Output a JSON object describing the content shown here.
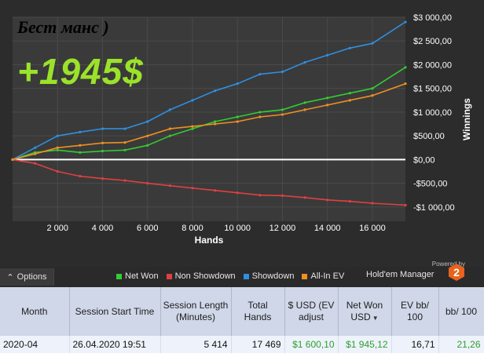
{
  "overlay": {
    "caption": "Бест манс )",
    "profit": "+1945$"
  },
  "options": {
    "label": "Options",
    "icon": "chevron-up-icon"
  },
  "legend": [
    {
      "label": "Net Won",
      "color": "#33cc33"
    },
    {
      "label": "Non Showdown",
      "color": "#e04040"
    },
    {
      "label": "Showdown",
      "color": "#2f8fe0"
    },
    {
      "label": "All-In EV",
      "color": "#f09020"
    }
  ],
  "branding": {
    "powered": "Powered by",
    "name": "Hold'em Manager",
    "version": "2"
  },
  "chart_data": {
    "type": "line",
    "xlabel": "Hands",
    "ylabel": "Winnings",
    "xlim": [
      0,
      17469
    ],
    "ylim": [
      -1300,
      3000
    ],
    "x_ticks": [
      2000,
      4000,
      6000,
      8000,
      10000,
      12000,
      14000,
      16000
    ],
    "x_tick_labels": [
      "2 000",
      "4 000",
      "6 000",
      "8 000",
      "10 000",
      "12 000",
      "14 000",
      "16 000"
    ],
    "y_ticks": [
      3000,
      2500,
      2000,
      1500,
      1000,
      500,
      0,
      -500,
      -1000
    ],
    "y_tick_labels": [
      "$3 000,00",
      "$2 500,00",
      "$2 000,00",
      "$1 500,00",
      "$1 000,00",
      "$500,00",
      "$0,00",
      "-$500,00",
      "-$1 000,00"
    ],
    "grid": true,
    "legend_placement": "bottom",
    "x": [
      0,
      1000,
      2000,
      3000,
      4000,
      5000,
      6000,
      7000,
      8000,
      9000,
      10000,
      11000,
      12000,
      13000,
      14000,
      15000,
      16000,
      17469
    ],
    "series": [
      {
        "name": "Net Won",
        "color": "#33cc33",
        "values": [
          0,
          150,
          200,
          150,
          180,
          200,
          300,
          500,
          650,
          800,
          900,
          1000,
          1050,
          1200,
          1300,
          1400,
          1500,
          1945
        ]
      },
      {
        "name": "Non Showdown",
        "color": "#e04040",
        "values": [
          0,
          -80,
          -250,
          -350,
          -400,
          -440,
          -500,
          -550,
          -600,
          -650,
          -700,
          -750,
          -760,
          -800,
          -850,
          -880,
          -920,
          -960
        ]
      },
      {
        "name": "Showdown",
        "color": "#2f8fe0",
        "values": [
          0,
          250,
          500,
          580,
          650,
          650,
          800,
          1050,
          1250,
          1450,
          1600,
          1800,
          1850,
          2050,
          2200,
          2350,
          2450,
          2900
        ]
      },
      {
        "name": "All-In EV",
        "color": "#f09020",
        "values": [
          0,
          120,
          250,
          300,
          350,
          360,
          500,
          650,
          700,
          750,
          800,
          900,
          950,
          1050,
          1150,
          1250,
          1350,
          1600
        ]
      }
    ]
  },
  "table": {
    "headers": [
      "Month",
      "Session Start Time",
      "Session Length (Minutes)",
      "Total Hands",
      "$ USD (EV adjust",
      "Net Won USD",
      "EV bb/ 100",
      "bb/ 100"
    ],
    "row": [
      "2020-04",
      "26.04.2020 19:51",
      "5 414",
      "17 469",
      "$1 600,10",
      "$1 945,12",
      "16,71",
      "21,26"
    ]
  }
}
